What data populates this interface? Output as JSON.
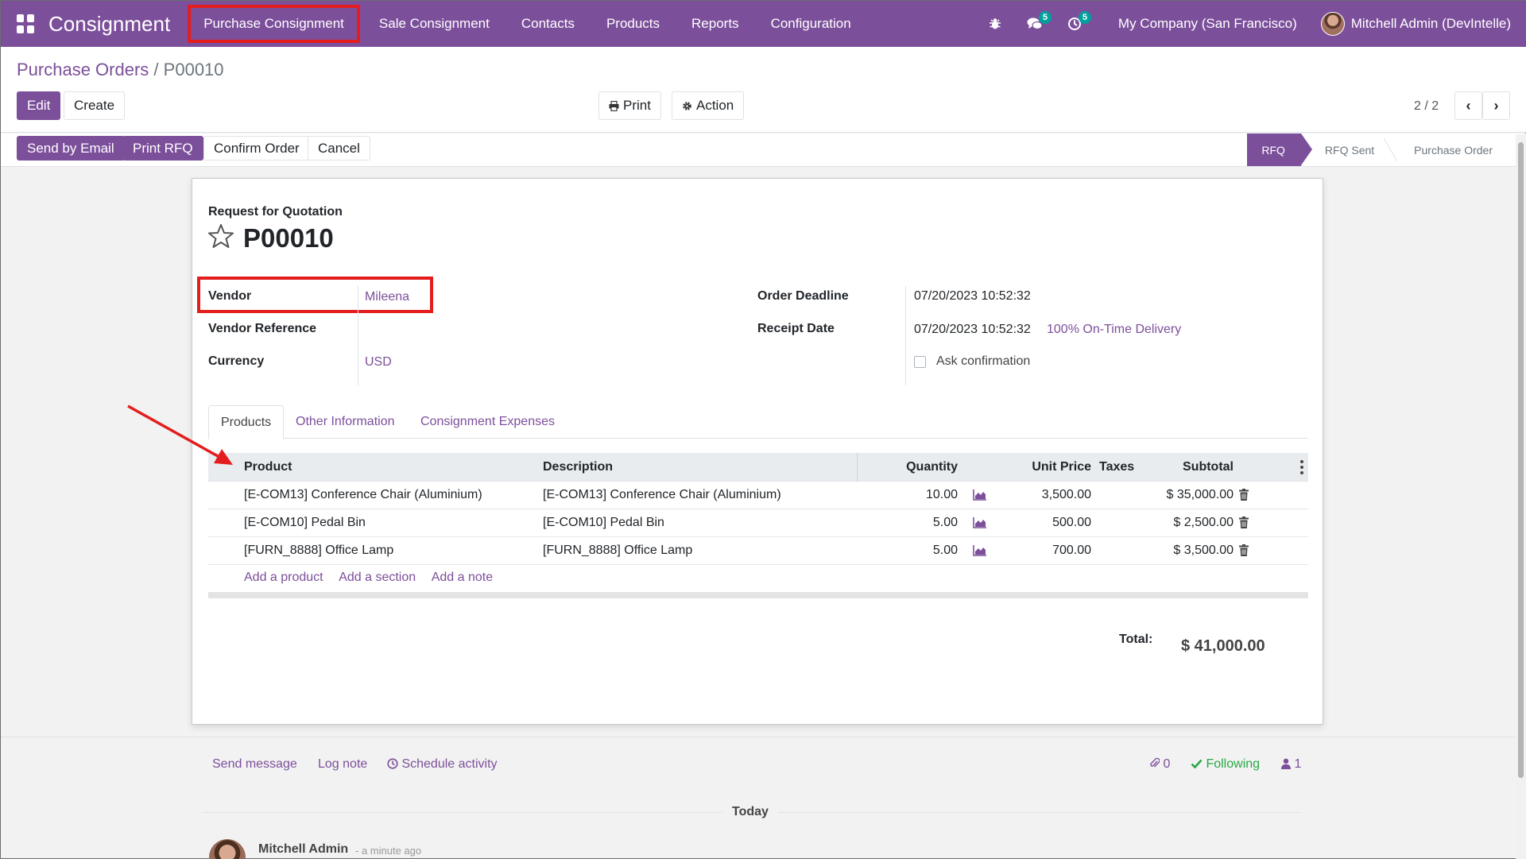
{
  "navbar": {
    "brand": "Consignment",
    "menu": [
      "Purchase Consignment",
      "Sale Consignment",
      "Contacts",
      "Products",
      "Reports",
      "Configuration"
    ],
    "messages_badge": "5",
    "activities_badge": "5",
    "company": "My Company (San Francisco)",
    "user": "Mitchell Admin (DevIntelle)"
  },
  "breadcrumb": {
    "parent": "Purchase Orders",
    "separator": "/",
    "current": "P00010"
  },
  "control": {
    "edit": "Edit",
    "create": "Create",
    "print": "Print",
    "action": "Action",
    "pager": "2 / 2"
  },
  "statusbar": {
    "buttons": [
      "Send by Email",
      "Print RFQ",
      "Confirm Order",
      "Cancel"
    ],
    "stages": [
      "RFQ",
      "RFQ Sent",
      "Purchase Order"
    ],
    "active_stage": "RFQ"
  },
  "form": {
    "title_label": "Request for Quotation",
    "title": "P00010",
    "vendor_label": "Vendor",
    "vendor": "Mileena",
    "vendor_ref_label": "Vendor Reference",
    "currency_label": "Currency",
    "currency": "USD",
    "deadline_label": "Order Deadline",
    "deadline": "07/20/2023 10:52:32",
    "receipt_label": "Receipt Date",
    "receipt": "07/20/2023 10:52:32",
    "ontime": "100% On-Time Delivery",
    "ask_confirmation": "Ask confirmation"
  },
  "tabs": [
    "Products",
    "Other Information",
    "Consignment Expenses"
  ],
  "table": {
    "headers": {
      "product": "Product",
      "description": "Description",
      "quantity": "Quantity",
      "unit_price": "Unit Price",
      "taxes": "Taxes",
      "subtotal": "Subtotal"
    },
    "rows": [
      {
        "product": "[E-COM13] Conference Chair (Aluminium)",
        "description": "[E-COM13] Conference Chair (Aluminium)",
        "quantity": "10.00",
        "unit_price": "3,500.00",
        "subtotal": "$ 35,000.00"
      },
      {
        "product": "[E-COM10] Pedal Bin",
        "description": "[E-COM10] Pedal Bin",
        "quantity": "5.00",
        "unit_price": "500.00",
        "subtotal": "$ 2,500.00"
      },
      {
        "product": "[FURN_8888] Office Lamp",
        "description": "[FURN_8888] Office Lamp",
        "quantity": "5.00",
        "unit_price": "700.00",
        "subtotal": "$ 3,500.00"
      }
    ],
    "add_product": "Add a product",
    "add_section": "Add a section",
    "add_note": "Add a note"
  },
  "totals": {
    "label": "Total:",
    "value": "$ 41,000.00"
  },
  "chatter": {
    "send_message": "Send message",
    "log_note": "Log note",
    "schedule_activity": "Schedule activity",
    "attachments": "0",
    "following": "Following",
    "followers": "1",
    "today": "Today",
    "author": "Mitchell Admin",
    "time": "- a minute ago"
  },
  "colors": {
    "brand": "#7c4f9b",
    "annotation": "#e31d1d",
    "following": "#28a745"
  },
  "icons": {
    "apps": "apps-grid-icon",
    "bug": "bug-icon",
    "messages": "chat-bubbles-icon",
    "activities": "clock-icon",
    "star": "star-icon",
    "chart": "area-chart-icon",
    "trash": "trash-icon"
  }
}
